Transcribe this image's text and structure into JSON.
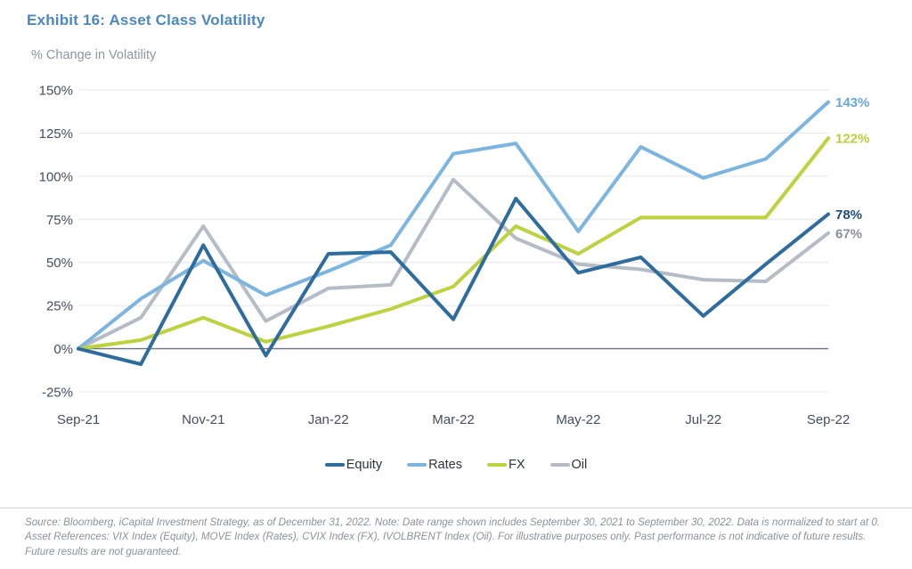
{
  "header": {
    "title": "Exhibit 16: Asset Class Volatility"
  },
  "chart_data": {
    "type": "line",
    "title": "Exhibit 16: Asset Class Volatility",
    "ylabel": "% Change in Volatility",
    "x": [
      "Sep-21",
      "Oct-21",
      "Nov-21",
      "Dec-21",
      "Jan-22",
      "Feb-22",
      "Mar-22",
      "Apr-22",
      "May-22",
      "Jun-22",
      "Jul-22",
      "Aug-22",
      "Sep-22"
    ],
    "x_tick_labels_shown": [
      "Sep-21",
      "Nov-21",
      "Jan-22",
      "Mar-22",
      "May-22",
      "Jul-22",
      "Sep-22"
    ],
    "y_ticks": [
      150,
      125,
      100,
      75,
      50,
      25,
      0,
      -25
    ],
    "ylim": [
      -25,
      150
    ],
    "y_tick_suffix": "%",
    "grid": "horizontal",
    "legend_position": "bottom",
    "series": [
      {
        "name": "Equity",
        "color": "#2e6c9e",
        "end_label": "78%",
        "end_label_color": "#1d4f7c",
        "values": [
          0,
          -9,
          60,
          -4,
          55,
          56,
          17,
          87,
          44,
          53,
          19,
          49,
          78
        ]
      },
      {
        "name": "Rates",
        "color": "#7cb5e0",
        "end_label": "143%",
        "end_label_color": "#69a9d9",
        "values": [
          0,
          29,
          51,
          31,
          45,
          60,
          113,
          119,
          68,
          117,
          99,
          110,
          143
        ]
      },
      {
        "name": "FX",
        "color": "#bdd23f",
        "end_label": "122%",
        "end_label_color": "#b8cf33",
        "values": [
          0,
          5,
          18,
          4,
          13,
          23,
          36,
          71,
          55,
          76,
          76,
          76,
          122
        ]
      },
      {
        "name": "Oil",
        "color": "#b6bcc6",
        "end_label": "67%",
        "end_label_color": "#8b909c",
        "values": [
          0,
          18,
          71,
          16,
          35,
          37,
          98,
          64,
          49,
          46,
          40,
          39,
          67
        ]
      }
    ]
  },
  "colors": {
    "title": "#4d87c0",
    "gridline": "#e5e6e9",
    "zero_line": "#6b7280",
    "tick_label": "#454d5e"
  },
  "footer": {
    "text": "Source: Bloomberg, iCapital Investment Strategy, as of December 31, 2022. Note: Date range shown includes September 30, 2021 to September 30, 2022. Data is normalized to start at 0. Asset References: VIX Index (Equity), MOVE Index (Rates), CVIX Index (FX), IVOLBRENT Index (Oil). For illustrative purposes only. Past performance is not indicative of future results. Future results are not guaranteed."
  }
}
